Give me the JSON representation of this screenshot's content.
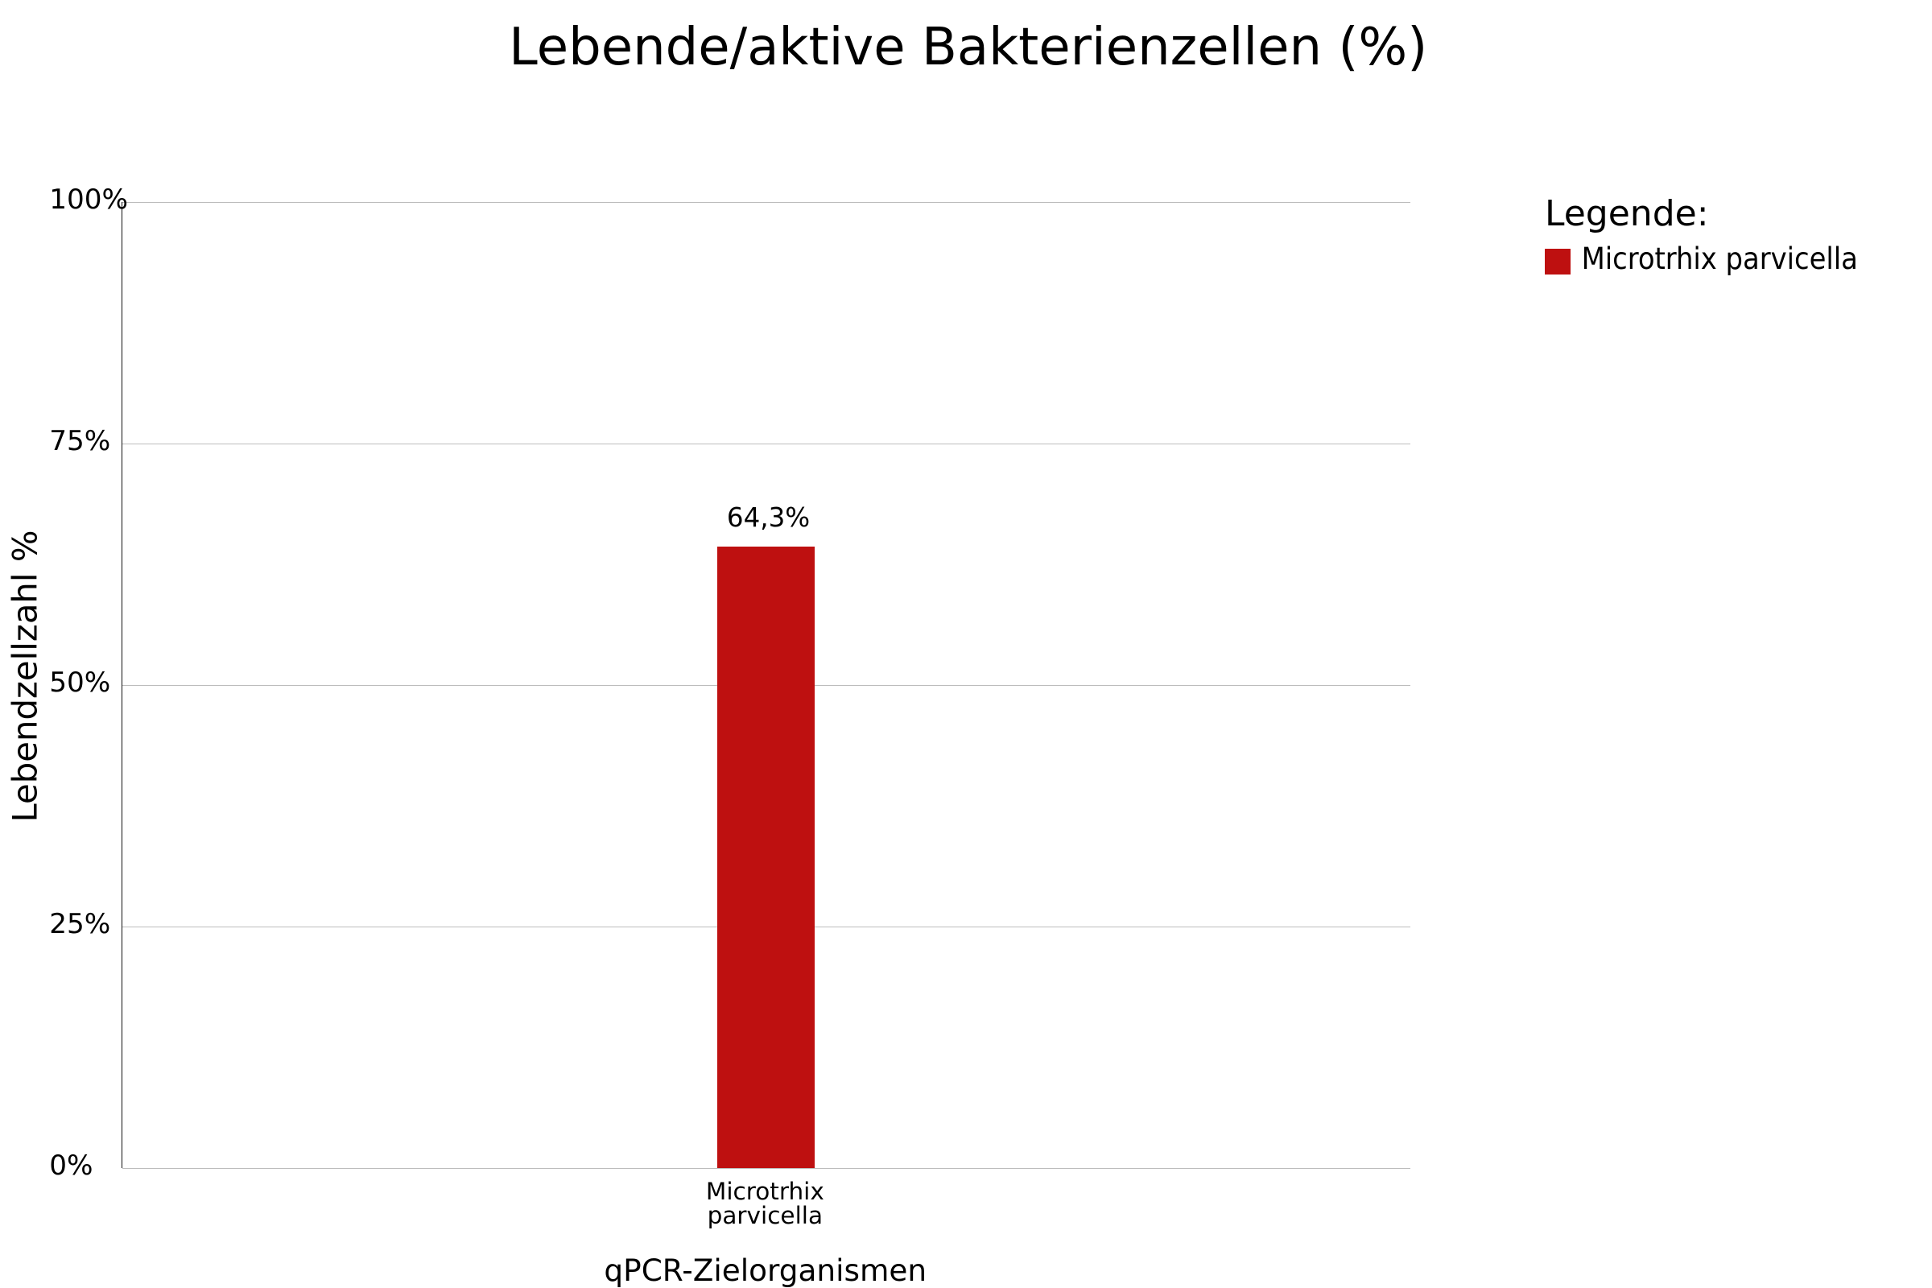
{
  "chart_data": {
    "type": "bar",
    "title": "Lebende/aktive Bakterienzellen (%)",
    "xlabel": "qPCR-Zielorganismen",
    "ylabel": "Lebendzellzahl %",
    "categories": [
      "Microtrhix parvicella"
    ],
    "series": [
      {
        "name": "Microtrhix parvicella",
        "values": [
          64.3
        ],
        "value_labels": [
          "64,3%"
        ],
        "color": "#be1010"
      }
    ],
    "ylim": [
      0,
      100
    ],
    "yticks": [
      "0%",
      "25%",
      "50%",
      "75%",
      "100%"
    ],
    "grid": true,
    "legend": {
      "title": "Legende:",
      "position": "upper-right",
      "items": [
        {
          "label": "Microtrhix parvicella",
          "color": "#be1010"
        }
      ]
    },
    "colors": {
      "bar": "#be1010",
      "grid": "#bdbdbd",
      "axis": "#111111",
      "text": "#000000",
      "background": "#ffffff"
    }
  }
}
